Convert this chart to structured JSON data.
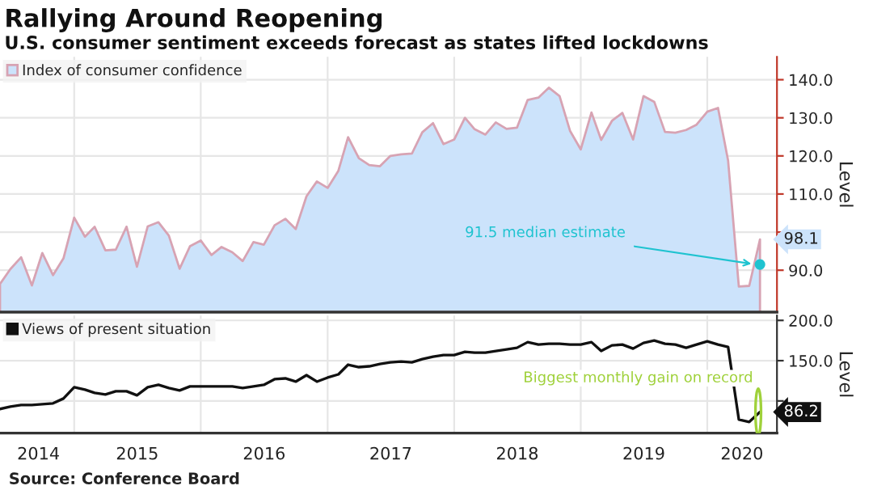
{
  "chart_data": [
    {
      "type": "area",
      "title": "Rallying Around Reopening",
      "subtitle": "U.S. consumer sentiment exceeds forecast as states lifted lockdowns",
      "ylabel": "Level",
      "x": [
        "2014-06",
        "2014-07",
        "2014-08",
        "2014-09",
        "2014-10",
        "2014-11",
        "2014-12",
        "2015-01",
        "2015-02",
        "2015-03",
        "2015-04",
        "2015-05",
        "2015-06",
        "2015-07",
        "2015-08",
        "2015-09",
        "2015-10",
        "2015-11",
        "2015-12",
        "2016-01",
        "2016-02",
        "2016-03",
        "2016-04",
        "2016-05",
        "2016-06",
        "2016-07",
        "2016-08",
        "2016-09",
        "2016-10",
        "2016-11",
        "2016-12",
        "2017-01",
        "2017-02",
        "2017-03",
        "2017-04",
        "2017-05",
        "2017-06",
        "2017-07",
        "2017-08",
        "2017-09",
        "2017-10",
        "2017-11",
        "2017-12",
        "2018-01",
        "2018-02",
        "2018-03",
        "2018-04",
        "2018-05",
        "2018-06",
        "2018-07",
        "2018-08",
        "2018-09",
        "2018-10",
        "2018-11",
        "2018-12",
        "2019-01",
        "2019-02",
        "2019-03",
        "2019-04",
        "2019-05",
        "2019-06",
        "2019-07",
        "2019-08",
        "2019-09",
        "2019-10",
        "2019-11",
        "2019-12",
        "2020-01",
        "2020-02",
        "2020-03",
        "2020-04",
        "2020-05",
        "2020-06"
      ],
      "series": [
        {
          "name": "Index of consumer confidence",
          "color": "#cce3fb",
          "values": [
            86.4,
            90.3,
            93.4,
            86.0,
            94.5,
            88.7,
            93.1,
            103.8,
            98.8,
            101.4,
            95.2,
            95.4,
            101.4,
            90.9,
            101.5,
            102.6,
            99.1,
            90.4,
            96.3,
            97.8,
            94.0,
            96.1,
            94.7,
            92.4,
            97.4,
            96.7,
            101.8,
            103.5,
            100.8,
            109.4,
            113.3,
            111.6,
            116.1,
            124.9,
            119.4,
            117.6,
            117.3,
            120.0,
            120.4,
            120.6,
            126.2,
            128.6,
            123.1,
            124.3,
            130.0,
            127.0,
            125.6,
            128.8,
            127.1,
            127.4,
            134.7,
            135.3,
            137.9,
            135.7,
            126.6,
            121.7,
            131.4,
            124.2,
            129.2,
            131.3,
            124.3,
            135.7,
            134.2,
            126.3,
            126.1,
            126.8,
            128.2,
            131.6,
            132.6,
            118.8,
            85.7,
            85.9,
            98.1
          ],
          "value_labels": [
            null,
            null,
            null,
            null,
            null,
            null,
            null,
            null,
            null,
            null,
            null,
            null,
            null,
            null,
            null,
            null,
            null,
            null,
            null,
            null,
            null,
            null,
            null,
            null,
            null,
            null,
            null,
            null,
            null,
            null,
            null,
            null,
            null,
            null,
            null,
            null,
            null,
            null,
            null,
            null,
            null,
            null,
            null,
            null,
            null,
            null,
            null,
            null,
            null,
            null,
            null,
            null,
            null,
            null,
            null,
            null,
            null,
            null,
            null,
            null,
            null,
            null,
            null,
            null,
            null,
            null,
            null,
            null,
            null,
            null,
            null,
            null,
            "98.1"
          ]
        },
        {
          "type": "scatter",
          "color": "#1fc3d0",
          "x": [
            "2020-06"
          ],
          "values": [
            91.5
          ]
        }
      ],
      "annotations": [
        {
          "text": "91.5 median estimate",
          "x": "2020-06",
          "y": 91.5
        }
      ],
      "xlim": [
        "2014-06-01",
        "2020-07-20"
      ],
      "xticks": [
        {
          "value": "2015-01-01",
          "label": null
        },
        {
          "value": "2016-01-01",
          "label": null
        },
        {
          "value": "2017-01-01",
          "label": null
        },
        {
          "value": "2018-01-01",
          "label": null
        },
        {
          "value": "2019-01-01",
          "label": null
        },
        {
          "value": "2020-01-01",
          "label": null
        }
      ],
      "ylim": [
        79,
        146
      ],
      "yticks": [
        {
          "value": 90,
          "label": "90.0"
        },
        {
          "value": 100,
          "label": null
        },
        {
          "value": 110,
          "label": "110.0"
        },
        {
          "value": 120,
          "label": "120.0"
        },
        {
          "value": 130,
          "label": "130.0"
        },
        {
          "value": 140,
          "label": "140.0"
        }
      ],
      "tick_labels": "y",
      "grid": true,
      "legend": "top left"
    },
    {
      "type": "line",
      "ylabel": "Level",
      "x": [
        "2014-06",
        "2014-07",
        "2014-08",
        "2014-09",
        "2014-10",
        "2014-11",
        "2014-12",
        "2015-01",
        "2015-02",
        "2015-03",
        "2015-04",
        "2015-05",
        "2015-06",
        "2015-07",
        "2015-08",
        "2015-09",
        "2015-10",
        "2015-11",
        "2015-12",
        "2016-01",
        "2016-02",
        "2016-03",
        "2016-04",
        "2016-05",
        "2016-06",
        "2016-07",
        "2016-08",
        "2016-09",
        "2016-10",
        "2016-11",
        "2016-12",
        "2017-01",
        "2017-02",
        "2017-03",
        "2017-04",
        "2017-05",
        "2017-06",
        "2017-07",
        "2017-08",
        "2017-09",
        "2017-10",
        "2017-11",
        "2017-12",
        "2018-01",
        "2018-02",
        "2018-03",
        "2018-04",
        "2018-05",
        "2018-06",
        "2018-07",
        "2018-08",
        "2018-09",
        "2018-10",
        "2018-11",
        "2018-12",
        "2019-01",
        "2019-02",
        "2019-03",
        "2019-04",
        "2019-05",
        "2019-06",
        "2019-07",
        "2019-08",
        "2019-09",
        "2019-10",
        "2019-11",
        "2019-12",
        "2020-01",
        "2020-02",
        "2020-03",
        "2020-04",
        "2020-05",
        "2020-06"
      ],
      "series": [
        {
          "name": "Views of present situation",
          "color": "#111111",
          "values": [
            90,
            93,
            95,
            95,
            96,
            97,
            103,
            117,
            114,
            110,
            108,
            112,
            112,
            107,
            117,
            120,
            116,
            113,
            118,
            118,
            118,
            118,
            118,
            116,
            118,
            120,
            127,
            128,
            124,
            132,
            124,
            129,
            133,
            145,
            142,
            143,
            146,
            148,
            149,
            148,
            152,
            155,
            157,
            157,
            161,
            160,
            160,
            162,
            164,
            166,
            173,
            170,
            171,
            171,
            170,
            170,
            173,
            162,
            169,
            170,
            165,
            172,
            175,
            171,
            170,
            166,
            170,
            174,
            170,
            167,
            77,
            74,
            86.2
          ],
          "value_labels": [
            null,
            null,
            null,
            null,
            null,
            null,
            null,
            null,
            null,
            null,
            null,
            null,
            null,
            null,
            null,
            null,
            null,
            null,
            null,
            null,
            null,
            null,
            null,
            null,
            null,
            null,
            null,
            null,
            null,
            null,
            null,
            null,
            null,
            null,
            null,
            null,
            null,
            null,
            null,
            null,
            null,
            null,
            null,
            null,
            null,
            null,
            null,
            null,
            null,
            null,
            null,
            null,
            null,
            null,
            null,
            null,
            null,
            null,
            null,
            null,
            null,
            null,
            null,
            null,
            null,
            null,
            null,
            null,
            null,
            null,
            null,
            null,
            "86.2"
          ]
        }
      ],
      "annotations": [
        {
          "text": "Biggest monthly gain on record",
          "x": "2020-06",
          "y": 86.2
        },
        "Source: Conference Board"
      ],
      "xlim": [
        "2014-06-01",
        "2020-07-20"
      ],
      "xticks": [
        {
          "value": "2015-01-01",
          "label": null
        },
        {
          "value": "2016-01-01",
          "label": null
        },
        {
          "value": "2017-01-01",
          "label": null
        },
        {
          "value": "2018-01-01",
          "label": null
        },
        {
          "value": "2019-01-01",
          "label": null
        },
        {
          "value": "2020-01-01",
          "label": null
        },
        {
          "value": "2014-09-20",
          "label": "2014"
        },
        {
          "value": "2015-07-02",
          "label": "2015"
        },
        {
          "value": "2016-07-02",
          "label": "2016"
        },
        {
          "value": "2017-07-02",
          "label": "2017"
        },
        {
          "value": "2018-07-02",
          "label": "2018"
        },
        {
          "value": "2019-07-02",
          "label": "2019"
        },
        {
          "value": "2020-04-10",
          "label": "2020"
        }
      ],
      "ylim": [
        60,
        206
      ],
      "yticks": [
        {
          "value": 100,
          "label": null
        },
        {
          "value": 150,
          "label": "150.0"
        },
        {
          "value": 200,
          "label": "200.0"
        }
      ],
      "grid": true,
      "legend": "top left"
    }
  ]
}
